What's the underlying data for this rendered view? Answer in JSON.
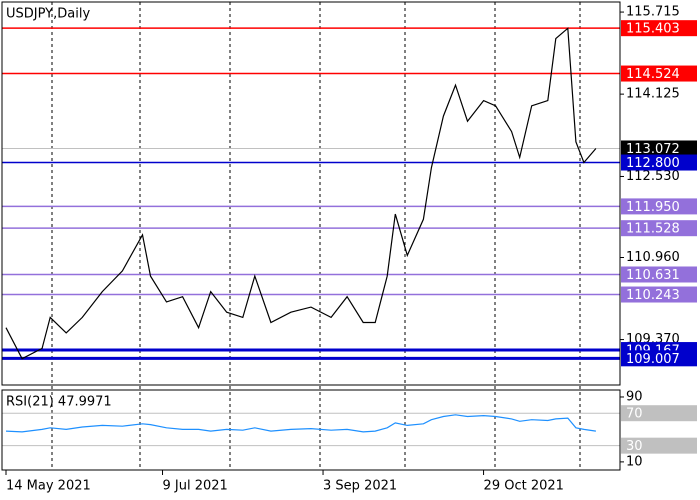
{
  "chart_data": [
    {
      "type": "line",
      "title": "USDJPY,Daily",
      "x": [
        0,
        4,
        9,
        11,
        15,
        19,
        24,
        29,
        34,
        36,
        40,
        44,
        48,
        51,
        55,
        59,
        62,
        66,
        71,
        76,
        81,
        85,
        89,
        92,
        95,
        97,
        100,
        104,
        106,
        109,
        112,
        115,
        119,
        122,
        126,
        128,
        131,
        135,
        137,
        140,
        142,
        144,
        147
      ],
      "series": [
        {
          "color": "#000000",
          "values": [
            109.6,
            109.0,
            109.2,
            109.8,
            109.5,
            109.8,
            110.3,
            110.7,
            111.4,
            110.6,
            110.1,
            110.2,
            109.6,
            110.3,
            109.9,
            109.8,
            110.6,
            109.7,
            109.9,
            110.0,
            109.8,
            110.2,
            109.7,
            109.7,
            110.6,
            111.8,
            111.0,
            111.7,
            112.7,
            113.7,
            114.3,
            113.6,
            114.0,
            113.9,
            113.4,
            112.9,
            113.9,
            114.0,
            115.2,
            115.4,
            113.2,
            112.8,
            113.072
          ]
        }
      ],
      "xlim": [
        -1,
        153
      ],
      "xticks": [
        {
          "value": 0,
          "label": "14 May 2021"
        },
        {
          "value": 39,
          "label": "9 Jul 2021"
        },
        {
          "value": 79,
          "label": "3 Sep 2021"
        },
        {
          "value": 119,
          "label": "29 Oct 2021"
        }
      ],
      "ylim": [
        108.49,
        115.91
      ],
      "yticks": [
        115.715,
        114.125,
        {
          "value": 112.53,
          "label": "112.530"
        },
        {
          "value": 110.96,
          "label": "110.960"
        },
        {
          "value": 109.37,
          "label": "109.370"
        }
      ],
      "levels": [
        {
          "price": 115.403,
          "color": "#ff0000",
          "width": 1.5
        },
        {
          "price": 114.524,
          "color": "#ff0000",
          "width": 1.5
        },
        {
          "price": 113.072,
          "color": "#c0c0c0",
          "width": 1,
          "box": "#000000"
        },
        {
          "price": 112.8,
          "label": "112.800",
          "color": "#0000cc",
          "width": 1.5
        },
        {
          "price": 111.95,
          "label": "111.950",
          "color": "#9370db",
          "width": 1.5
        },
        {
          "price": 111.528,
          "color": "#9370db",
          "width": 1.5
        },
        {
          "price": 110.631,
          "color": "#9370db",
          "width": 1.5
        },
        {
          "price": 110.243,
          "color": "#9370db",
          "width": 1.5
        },
        {
          "price": 109.167,
          "color": "#0000cc",
          "width": 3
        },
        {
          "price": 109.007,
          "color": "#0000cc",
          "width": 3
        }
      ]
    },
    {
      "type": "line",
      "title": "RSI(21) 47.9971",
      "x": [
        0,
        4,
        9,
        11,
        15,
        19,
        24,
        29,
        34,
        36,
        40,
        44,
        48,
        51,
        55,
        59,
        62,
        66,
        71,
        76,
        81,
        85,
        89,
        92,
        95,
        97,
        100,
        104,
        106,
        109,
        112,
        115,
        119,
        122,
        126,
        128,
        131,
        135,
        137,
        140,
        142,
        144,
        147
      ],
      "series": [
        {
          "color": "#1e90ff",
          "values": [
            48,
            47,
            50,
            52,
            50,
            53,
            55,
            54,
            57,
            56,
            52,
            50,
            50,
            48,
            50,
            49,
            52,
            48,
            50,
            51,
            49,
            50,
            47,
            48,
            52,
            58,
            55,
            57,
            62,
            66,
            68,
            66,
            67,
            66,
            63,
            60,
            62,
            61,
            63,
            64,
            52,
            50,
            47.9971
          ]
        }
      ],
      "xlim": [
        -1,
        153
      ],
      "ylim": [
        0,
        98.6
      ],
      "yticks": [
        90,
        10
      ],
      "levels": [
        {
          "price": 70,
          "color": "#c0c0c0",
          "width": 1
        },
        {
          "price": 30,
          "color": "#c0c0c0",
          "width": 1
        }
      ]
    }
  ]
}
